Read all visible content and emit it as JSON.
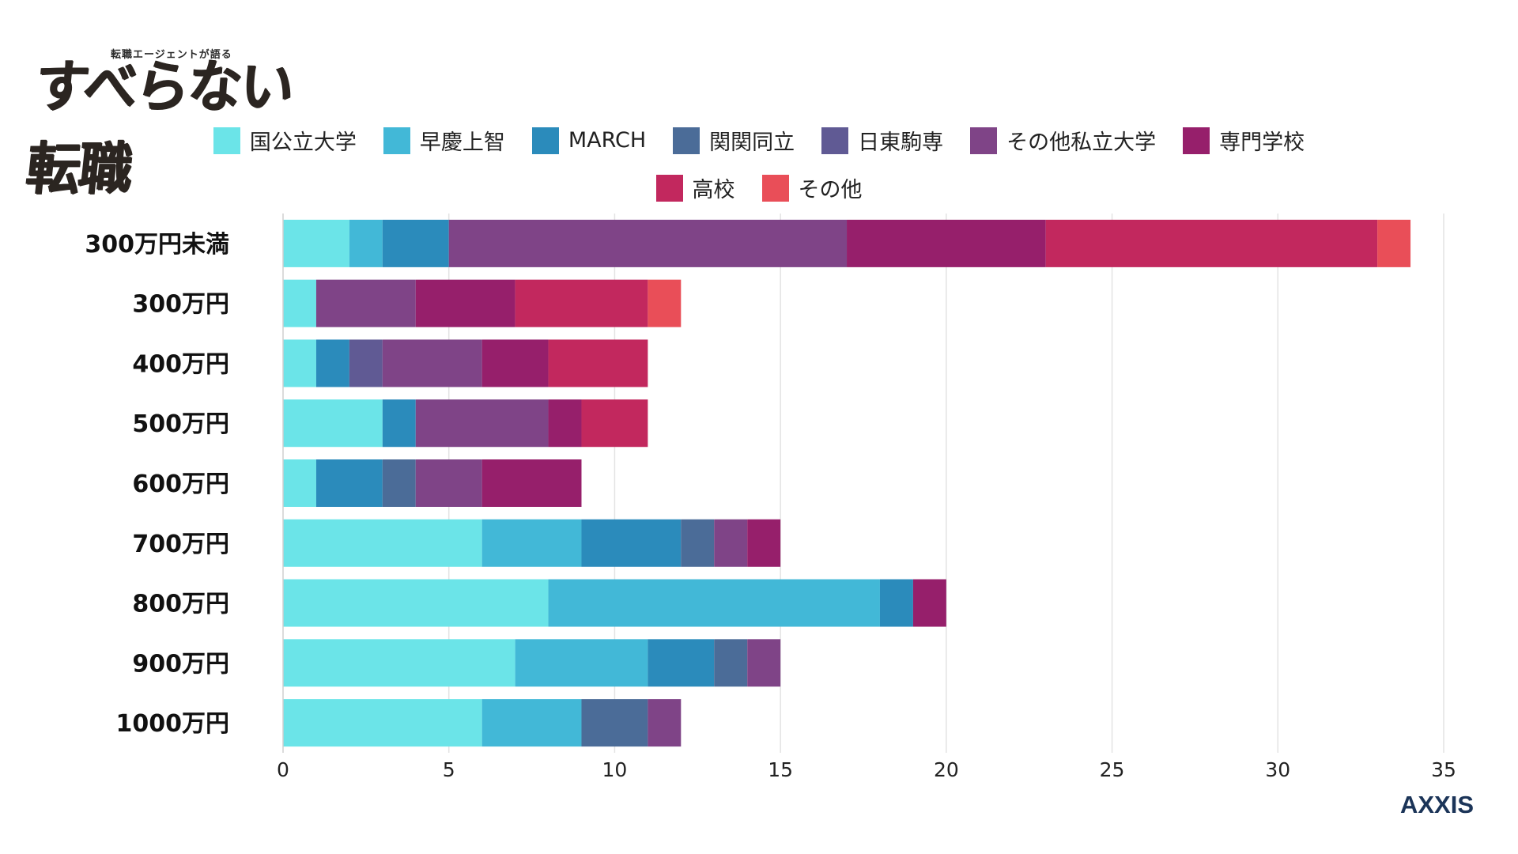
{
  "logo": {
    "subtitle": "転職エージェントが語る",
    "title": "すべらない転職"
  },
  "brand": "AXXIS",
  "chart_data": {
    "type": "bar",
    "orientation": "horizontal",
    "stacked": true,
    "categories": [
      "300万円未満",
      "300万円",
      "400万円",
      "500万円",
      "600万円",
      "700万円",
      "800万円",
      "900万円",
      "1000万円"
    ],
    "series": [
      {
        "name": "国公立大学",
        "color": "#6be4e8",
        "values": [
          2,
          1,
          1,
          3,
          1,
          6,
          8,
          7,
          6
        ]
      },
      {
        "name": "早慶上智",
        "color": "#42b8d7",
        "values": [
          1,
          0,
          0,
          0,
          0,
          3,
          10,
          4,
          3
        ]
      },
      {
        "name": "MARCH",
        "color": "#2b8bbb",
        "values": [
          2,
          0,
          1,
          1,
          2,
          3,
          1,
          2,
          0
        ]
      },
      {
        "name": "関関同立",
        "color": "#4b6c98",
        "values": [
          0,
          0,
          0,
          0,
          1,
          1,
          0,
          1,
          2
        ]
      },
      {
        "name": "日東駒専",
        "color": "#605a94",
        "values": [
          0,
          0,
          1,
          0,
          0,
          0,
          0,
          0,
          0
        ]
      },
      {
        "name": "その他私立大学",
        "color": "#7f4487",
        "values": [
          12,
          3,
          3,
          4,
          2,
          1,
          0,
          1,
          1
        ]
      },
      {
        "name": "専門学校",
        "color": "#961f6b",
        "values": [
          6,
          3,
          2,
          1,
          3,
          1,
          1,
          0,
          0
        ]
      },
      {
        "name": "高校",
        "color": "#c2285e",
        "values": [
          10,
          4,
          3,
          2,
          0,
          0,
          0,
          0,
          0
        ]
      },
      {
        "name": "その他",
        "color": "#e94e58",
        "values": [
          1,
          1,
          0,
          0,
          0,
          0,
          0,
          0,
          0
        ]
      }
    ],
    "xlim": [
      0,
      35
    ],
    "xticks": [
      0,
      5,
      10,
      15,
      20,
      25,
      30,
      35
    ],
    "grid": true,
    "legend": "top-center",
    "title": "",
    "xlabel": "",
    "ylabel": ""
  }
}
